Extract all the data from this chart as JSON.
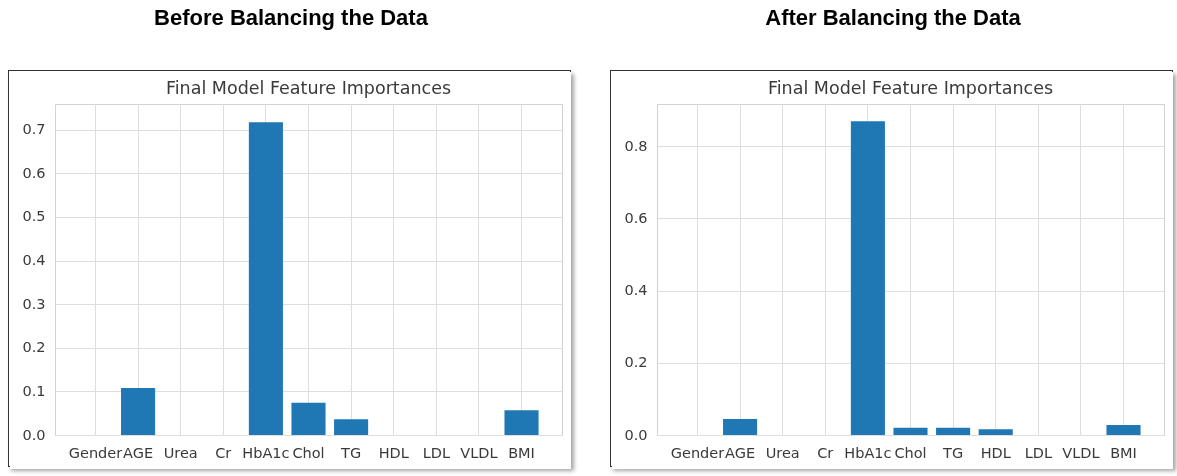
{
  "chart_data": [
    {
      "type": "bar",
      "title": "Before Balancing the Data",
      "subtitle": "Final Model Feature Importances",
      "categories": [
        "Gender",
        "AGE",
        "Urea",
        "Cr",
        "HbA1c",
        "Chol",
        "TG",
        "HDL",
        "LDL",
        "VLDL",
        "BMI"
      ],
      "values": [
        0,
        0.108,
        0,
        0,
        0.717,
        0.074,
        0.036,
        0,
        0,
        0,
        0.057
      ],
      "color": "#1f77b4",
      "ylim": [
        0,
        0.759
      ],
      "yticks": [
        {
          "value": 0,
          "label": "0.0"
        },
        0.1,
        0.2,
        0.3,
        0.4,
        0.5,
        0.6,
        0.7
      ],
      "grid": true
    },
    {
      "type": "bar",
      "title": "After Balancing the Data",
      "subtitle": "Final Model Feature Importances",
      "categories": [
        "Gender",
        "AGE",
        "Urea",
        "Cr",
        "HbA1c",
        "Chol",
        "TG",
        "HDL",
        "LDL",
        "VLDL",
        "BMI"
      ],
      "values": [
        0,
        0.044,
        0,
        0,
        0.869,
        0.02,
        0.02,
        0.016,
        0,
        0,
        0.028
      ],
      "color": "#1f77b4",
      "ylim": [
        0,
        0.917
      ],
      "yticks": [
        {
          "value": 0,
          "label": "0.0"
        },
        0.2,
        0.4,
        0.6,
        0.8
      ],
      "grid": true
    }
  ]
}
